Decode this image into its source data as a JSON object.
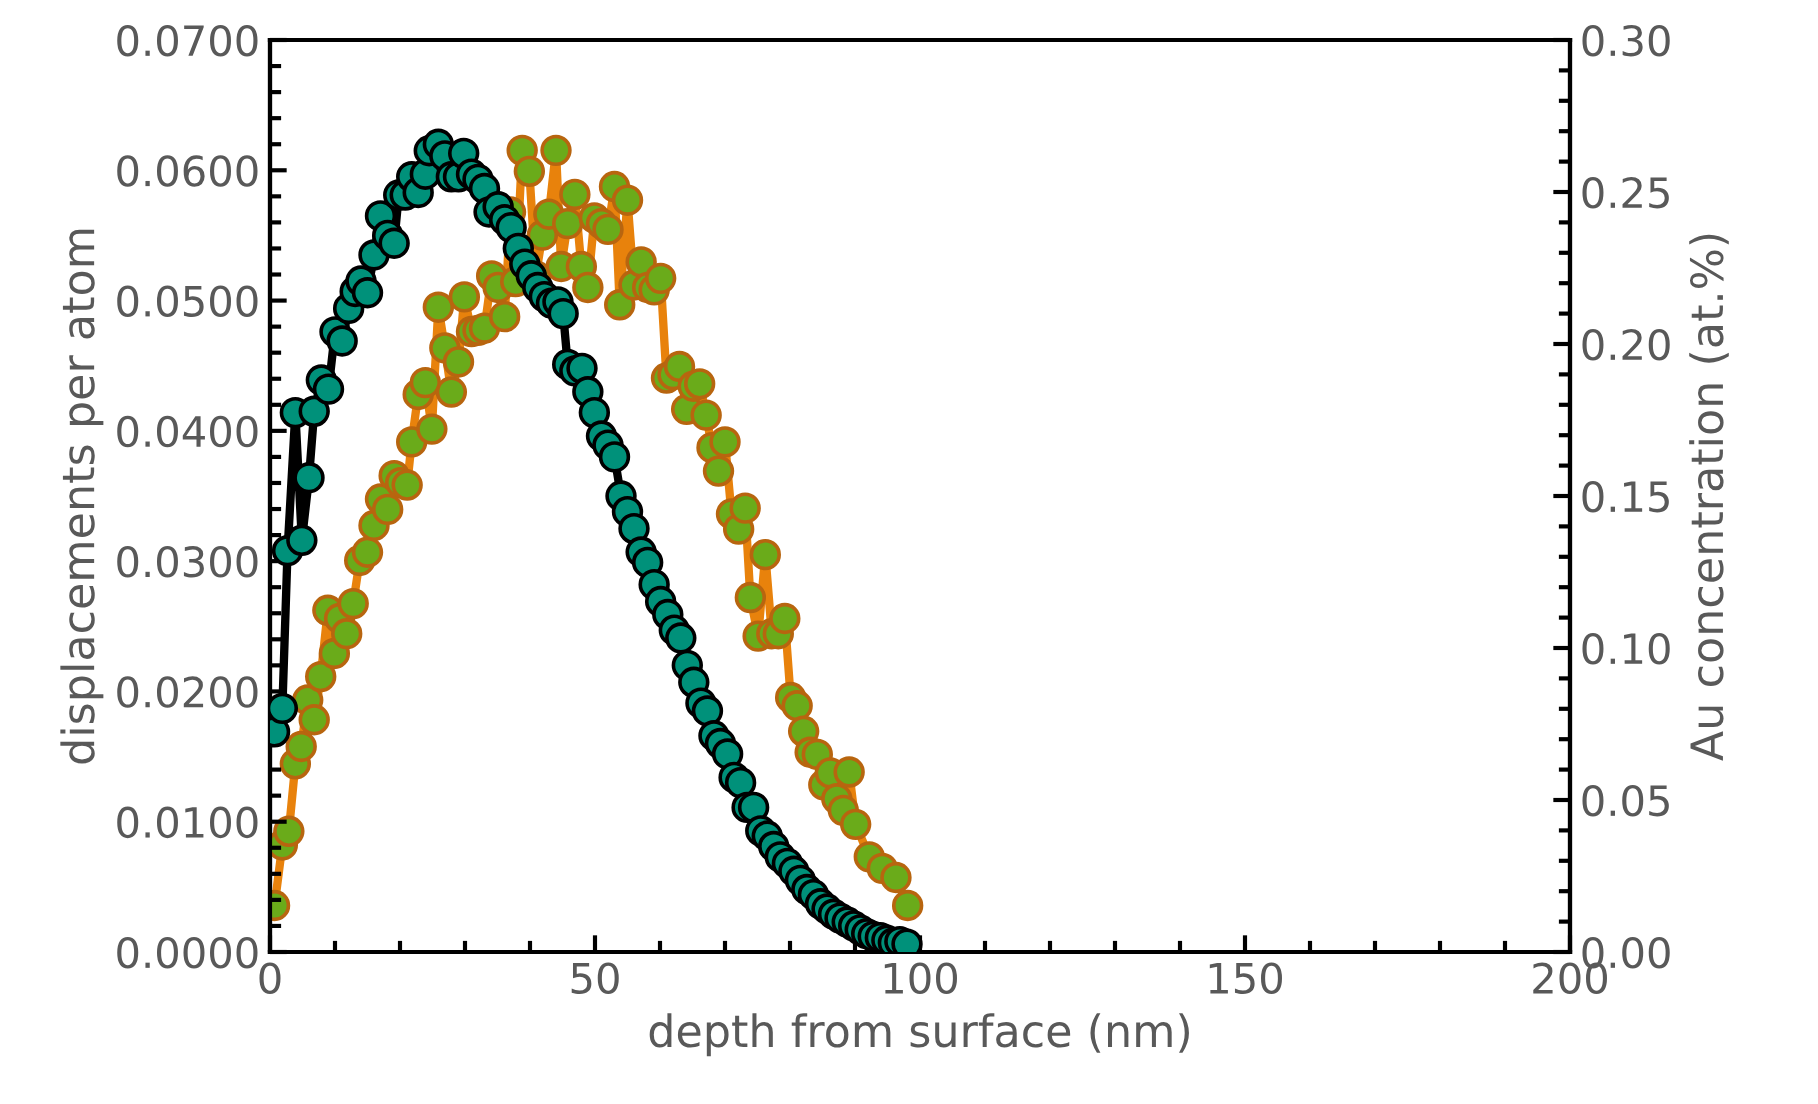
{
  "chart_data": {
    "type": "line",
    "xlabel": "depth from surface (nm)",
    "ylabel": "displacements per atom",
    "y2label": "Au concentration (at.%)",
    "xlim": [
      0,
      200
    ],
    "xticks": [
      0,
      50,
      100,
      150,
      200
    ],
    "ylim": [
      0,
      0.07
    ],
    "yticks": [
      {
        "value": 0,
        "label": "0.0000"
      },
      {
        "value": 0.01,
        "label": "0.0100"
      },
      {
        "value": 0.02,
        "label": "0.0200"
      },
      {
        "value": 0.03,
        "label": "0.0300"
      },
      {
        "value": 0.04,
        "label": "0.0400"
      },
      {
        "value": 0.05,
        "label": "0.0500"
      },
      {
        "value": 0.06,
        "label": "0.0600"
      },
      {
        "value": 0.07,
        "label": "0.0700"
      }
    ],
    "y2lim": [
      0,
      0.3
    ],
    "y2ticks": [
      {
        "value": 0,
        "label": "0.00"
      },
      {
        "value": 0.05,
        "label": "0.05"
      },
      {
        "value": 0.1,
        "label": "0.10"
      },
      {
        "value": 0.15,
        "label": "0.15"
      },
      {
        "value": 0.2,
        "label": "0.20"
      },
      {
        "value": 0.25,
        "label": "0.25"
      },
      {
        "value": 0.3,
        "label": "0.30"
      }
    ],
    "grid": false,
    "marker": "circle",
    "line_style": "solid",
    "series": [
      {
        "color": "#00917a",
        "axis": "y",
        "x": [
          0.7,
          1.9,
          2.7,
          3.9,
          4.9,
          6.0,
          6.8,
          7.9,
          9.0,
          10.0,
          11.1,
          12.1,
          13.1,
          14.0,
          15.0,
          16.0,
          17.0,
          18.1,
          19.1,
          19.8,
          20.8,
          21.8,
          22.8,
          23.9,
          24.5,
          25.9,
          26.9,
          27.9,
          29.0,
          29.8,
          31.0,
          32.0,
          33.0,
          33.7,
          35.1,
          36.1,
          37.1,
          38.2,
          39.2,
          40.2,
          41.2,
          42.2,
          43.3,
          44.3,
          45.1,
          45.8,
          46.9,
          48.0,
          48.9,
          49.9,
          51.0,
          52.0,
          53.0,
          54.0,
          55.0,
          56.0,
          57.1,
          58.1,
          59.1,
          60.1,
          61.2,
          62.2,
          63.2,
          64.2,
          65.2,
          66.3,
          67.3,
          68.3,
          69.3,
          70.4,
          71.4,
          72.4,
          73.4,
          74.4,
          75.5,
          76.5,
          77.5,
          78.5,
          79.6,
          80.6,
          81.6,
          82.6,
          83.6,
          84.7,
          85.7,
          86.7,
          87.7,
          88.8,
          89.8,
          90.8,
          91.8,
          92.8,
          93.9,
          94.9,
          95.9,
          96.9,
          98.0
        ],
        "values": [
          0.0169,
          0.0187,
          0.0308,
          0.0414,
          0.0316,
          0.0364,
          0.0415,
          0.0439,
          0.0432,
          0.0476,
          0.0469,
          0.0494,
          0.0507,
          0.0515,
          0.0506,
          0.0535,
          0.0565,
          0.055,
          0.0544,
          0.0581,
          0.0581,
          0.0595,
          0.0583,
          0.0597,
          0.0615,
          0.062,
          0.0611,
          0.0595,
          0.0595,
          0.0613,
          0.0597,
          0.0593,
          0.0586,
          0.0568,
          0.0572,
          0.0562,
          0.0556,
          0.054,
          0.0528,
          0.0519,
          0.051,
          0.0503,
          0.0498,
          0.0499,
          0.049,
          0.0451,
          0.0446,
          0.0448,
          0.043,
          0.0414,
          0.0396,
          0.0389,
          0.038,
          0.035,
          0.0338,
          0.0325,
          0.0307,
          0.0299,
          0.0282,
          0.0269,
          0.0259,
          0.0247,
          0.0241,
          0.022,
          0.0207,
          0.0191,
          0.0185,
          0.0166,
          0.016,
          0.0152,
          0.0134,
          0.013,
          0.0111,
          0.0111,
          0.0093,
          0.0089,
          0.0081,
          0.0073,
          0.0068,
          0.0062,
          0.0055,
          0.0048,
          0.0044,
          0.0037,
          0.0033,
          0.0029,
          0.0026,
          0.0023,
          0.002,
          0.0017,
          0.0014,
          0.0012,
          0.0011,
          0.0009,
          0.0007,
          0.0008,
          0.0006
        ]
      },
      {
        "color": "#6aab1a",
        "axis": "y2",
        "x": [
          0.7,
          1.9,
          2.9,
          3.9,
          4.8,
          5.8,
          6.8,
          7.8,
          8.9,
          9.9,
          10.7,
          11.8,
          12.8,
          13.8,
          15.0,
          16.0,
          17.0,
          18.1,
          19.1,
          20.1,
          21.1,
          21.8,
          22.8,
          23.9,
          24.9,
          25.9,
          26.9,
          27.9,
          29.0,
          29.9,
          31.0,
          32.0,
          33.0,
          34.1,
          35.1,
          36.1,
          37.0,
          37.8,
          38.8,
          39.9,
          40.9,
          41.9,
          42.9,
          44.0,
          44.8,
          45.8,
          46.9,
          47.9,
          48.9,
          49.9,
          51.0,
          52.0,
          53.0,
          53.8,
          55.0,
          56.0,
          57.1,
          58.1,
          59.1,
          60.1,
          61.0,
          62.0,
          63.0,
          64.1,
          65.1,
          66.1,
          67.1,
          68.0,
          69.0,
          70.0,
          71.0,
          72.1,
          73.1,
          73.9,
          75.1,
          76.2,
          77.2,
          78.2,
          79.2,
          80.1,
          81.1,
          82.1,
          83.1,
          84.2,
          85.2,
          86.2,
          87.2,
          88.2,
          89.1,
          90.1,
          92.2,
          94.2,
          96.3,
          98.1
        ],
        "values": [
          0.0153,
          0.0352,
          0.0397,
          0.0619,
          0.0676,
          0.0829,
          0.0764,
          0.0906,
          0.1124,
          0.0982,
          0.1097,
          0.1047,
          0.1146,
          0.1288,
          0.1315,
          0.1403,
          0.149,
          0.1456,
          0.1567,
          0.1544,
          0.1536,
          0.1678,
          0.1834,
          0.1873,
          0.172,
          0.2121,
          0.1987,
          0.1842,
          0.1941,
          0.2155,
          0.2041,
          0.2045,
          0.2052,
          0.2224,
          0.2186,
          0.209,
          0.2434,
          0.2205,
          0.2637,
          0.2568,
          0.2224,
          0.2358,
          0.2427,
          0.2637,
          0.2255,
          0.2396,
          0.2492,
          0.2255,
          0.2186,
          0.2415,
          0.2396,
          0.2377,
          0.2518,
          0.2129,
          0.2473,
          0.2194,
          0.227,
          0.2186,
          0.2178,
          0.2216,
          0.1888,
          0.1899,
          0.1926,
          0.1785,
          0.1861,
          0.1869,
          0.1766,
          0.1659,
          0.1582,
          0.1678,
          0.1441,
          0.1391,
          0.146,
          0.1166,
          0.1039,
          0.1307,
          0.1047,
          0.1047,
          0.1097,
          0.0837,
          0.081,
          0.0726,
          0.0657,
          0.065,
          0.055,
          0.0589,
          0.0504,
          0.0466,
          0.0592,
          0.042,
          0.0313,
          0.0275,
          0.0245,
          0.0153
        ]
      }
    ]
  }
}
